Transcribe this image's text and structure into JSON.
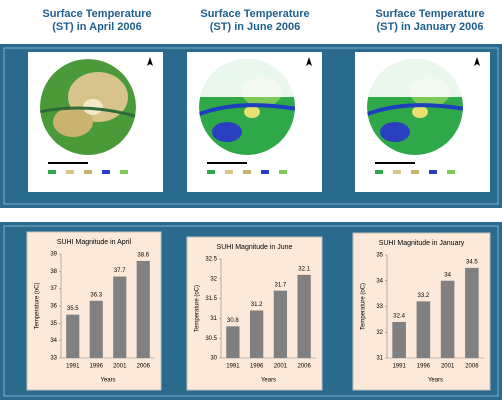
{
  "maps": [
    {
      "title": "Surface Temperature (ST) in April 2006"
    },
    {
      "title": "Surface Temperature (ST) in June 2006"
    },
    {
      "title": "Surface Temperature (ST) in January 2006"
    }
  ],
  "chart_data": [
    {
      "type": "bar",
      "title": "SUHI Magnitude in April",
      "x_label": "Years",
      "y_label": "Temperature (oC)",
      "categories": [
        "1991",
        "1996",
        "2001",
        "2006"
      ],
      "values": [
        35.5,
        36.3,
        37.7,
        38.6
      ],
      "color": "#808080",
      "ylim": [
        33,
        39
      ],
      "yticks": [
        33,
        34,
        35,
        36,
        37,
        38,
        39
      ]
    },
    {
      "type": "bar",
      "title": "SUHI Magnitude in June",
      "x_label": "Years",
      "y_label": "Temperature (oC)",
      "categories": [
        "1991",
        "1996",
        "2001",
        "2006"
      ],
      "values": [
        30.8,
        31.2,
        31.7,
        32.1
      ],
      "color": "#808080",
      "ylim": [
        30,
        32.5
      ],
      "yticks": [
        30,
        30.5,
        31,
        31.5,
        32,
        32.5
      ]
    },
    {
      "type": "bar",
      "title": "SUHI Magnitude in January",
      "x_label": "Years",
      "y_label": "Temperature (oC)",
      "categories": [
        "1991",
        "1996",
        "2001",
        "2006"
      ],
      "values": [
        32.4,
        33.2,
        34,
        34.5
      ],
      "color": "#808080",
      "ylim": [
        31,
        35
      ],
      "yticks": [
        31,
        32,
        33,
        34,
        35
      ]
    }
  ]
}
